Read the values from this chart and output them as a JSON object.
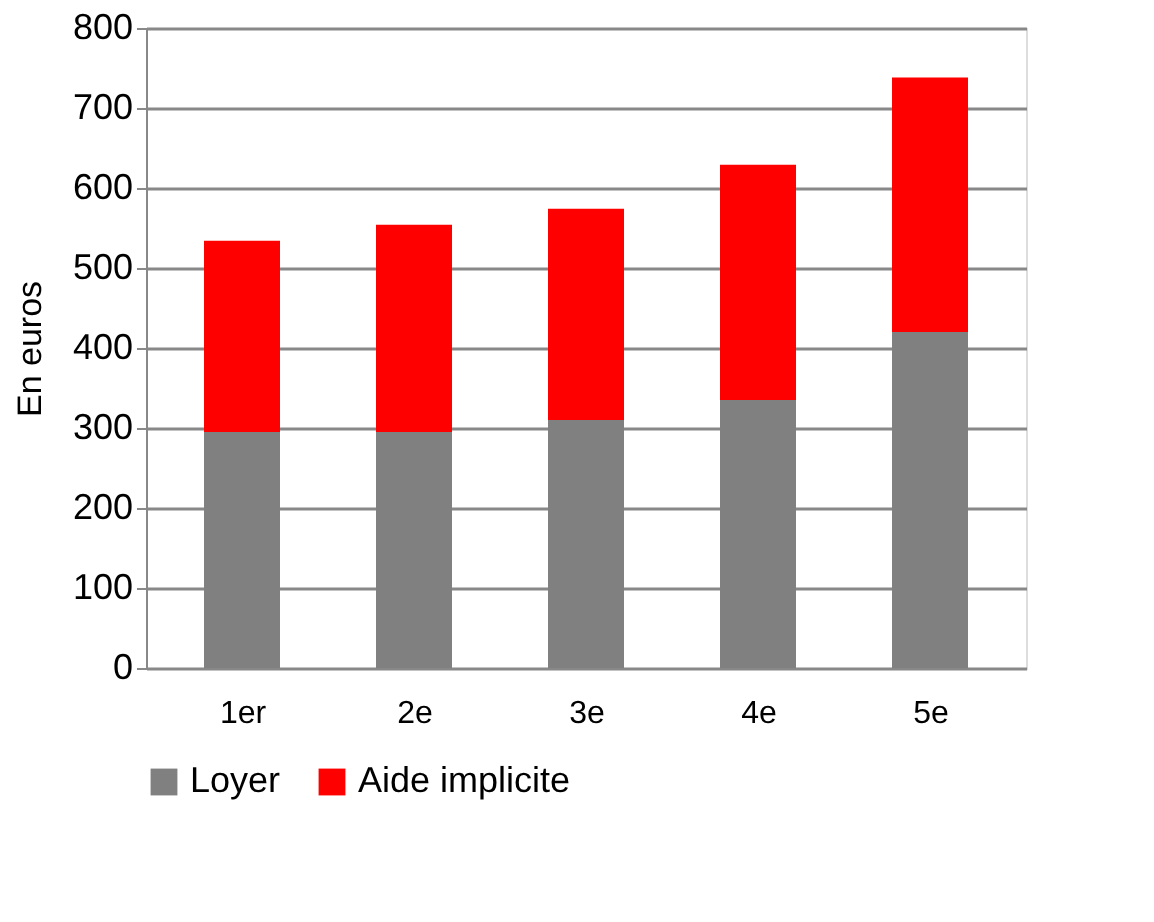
{
  "chart_data": {
    "type": "bar",
    "stacked": true,
    "ylabel": "En euros",
    "categories": [
      "1er",
      "2e",
      "3e",
      "4e",
      "5e"
    ],
    "series": [
      {
        "name": "Loyer",
        "color": "#808080",
        "values": [
          295,
          295,
          310,
          335,
          420
        ]
      },
      {
        "name": "Aide implicite",
        "color": "#ff0000",
        "values": [
          239,
          259,
          264,
          294,
          318
        ]
      }
    ],
    "ylim": [
      0,
      800
    ],
    "yticks": [
      0,
      100,
      200,
      300,
      400,
      500,
      600,
      700,
      800
    ],
    "grid": "y",
    "legend": "bottom"
  }
}
